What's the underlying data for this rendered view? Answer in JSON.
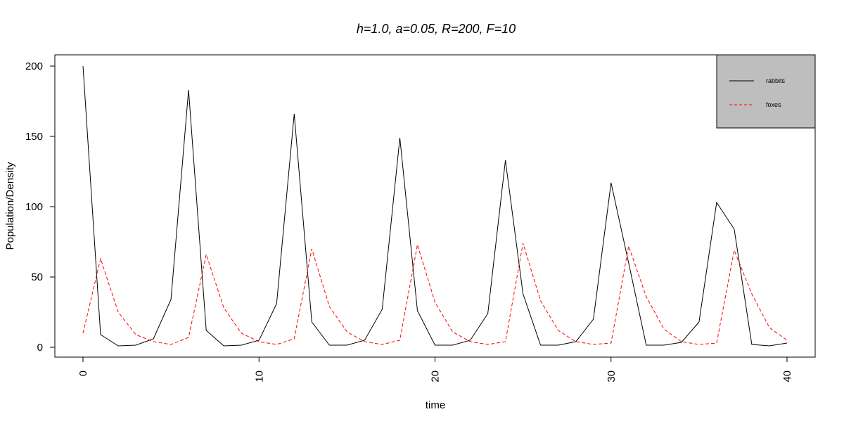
{
  "chart_data": {
    "type": "line",
    "title": "h=1.0, a=0.05, R=200, F=10",
    "xlabel": "time",
    "ylabel": "Population/Density",
    "xlim": [
      0,
      40
    ],
    "ylim": [
      0,
      200
    ],
    "xticks": [
      0,
      10,
      20,
      30,
      40
    ],
    "yticks": [
      0,
      50,
      100,
      150,
      200
    ],
    "grid": false,
    "legend": {
      "position": "top-right",
      "background": "#bebebe"
    },
    "x": [
      0,
      1,
      2,
      3,
      4,
      5,
      6,
      7,
      8,
      9,
      10,
      11,
      12,
      13,
      14,
      15,
      16,
      17,
      18,
      19,
      20,
      21,
      22,
      23,
      24,
      25,
      26,
      27,
      28,
      29,
      30,
      31,
      32,
      33,
      34,
      35,
      36,
      37,
      38,
      39,
      40
    ],
    "series": [
      {
        "name": "rabbits",
        "color": "#000000",
        "dash": "solid",
        "values": [
          200,
          9,
          1,
          1.5,
          6,
          34,
          183,
          12,
          1,
          1.5,
          5,
          31,
          166,
          18,
          1.5,
          1.5,
          5,
          27,
          149,
          26,
          1.5,
          1.5,
          5,
          24,
          133,
          38,
          1.5,
          1.5,
          4,
          20,
          117,
          60,
          1.5,
          1.5,
          3.5,
          18,
          103,
          84,
          2,
          1,
          3
        ]
      },
      {
        "name": "foxes",
        "color": "#ff0000",
        "dash": "dashed",
        "values": [
          10,
          63,
          25,
          9,
          4,
          2,
          7,
          66,
          28,
          10,
          4,
          2,
          6,
          70,
          29,
          11,
          4,
          2,
          5,
          73,
          32,
          11,
          4,
          2,
          4,
          74,
          33,
          12,
          4,
          2,
          3,
          72,
          36,
          13,
          4,
          2,
          3,
          69,
          38,
          14,
          5
        ]
      }
    ]
  }
}
